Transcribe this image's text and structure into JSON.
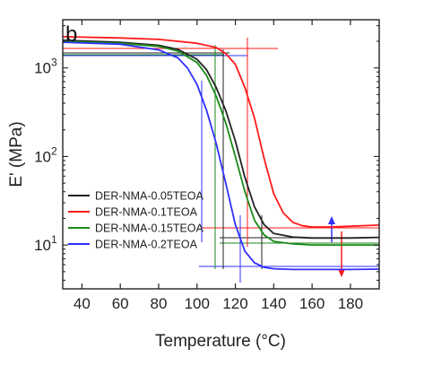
{
  "chart_data": {
    "type": "line",
    "panel_label": "b",
    "xlabel": "Temperature (°C)",
    "ylabel": "E' (MPa)",
    "xlim": [
      30,
      195
    ],
    "ylim": [
      3.2,
      3500
    ],
    "yscale": "log",
    "x_ticks": [
      40,
      60,
      80,
      100,
      120,
      140,
      160,
      180
    ],
    "y_ticks": [
      {
        "value": 10,
        "base": "10",
        "exp": "1"
      },
      {
        "value": 100,
        "base": "10",
        "exp": "2"
      },
      {
        "value": 1000,
        "base": "10",
        "exp": "3"
      }
    ],
    "legend_position": "bottom-left",
    "series": [
      {
        "name": "DER-NMA-0.05TEOA",
        "color": "#222222",
        "x": [
          30,
          60,
          80,
          90,
          100,
          105,
          110,
          115,
          120,
          125,
          130,
          135,
          140,
          150,
          160,
          170,
          180,
          195
        ],
        "y": [
          2050,
          1950,
          1800,
          1620,
          1250,
          950,
          600,
          330,
          150,
          58,
          27,
          17,
          13.5,
          12.3,
          12,
          12,
          12,
          12.2
        ]
      },
      {
        "name": "DER-NMA-0.1TEOA",
        "color": "#ff1a1a",
        "x": [
          30,
          60,
          80,
          100,
          110,
          115,
          120,
          125,
          130,
          135,
          140,
          145,
          150,
          155,
          160,
          170,
          180,
          195
        ],
        "y": [
          2250,
          2180,
          2100,
          1900,
          1700,
          1450,
          1100,
          600,
          270,
          95,
          38,
          23,
          18,
          16.5,
          16,
          16,
          16.3,
          16.8
        ]
      },
      {
        "name": "DER-NMA-0.15TEOA",
        "color": "#1a8a1a",
        "x": [
          30,
          60,
          80,
          90,
          100,
          105,
          110,
          115,
          120,
          125,
          130,
          135,
          140,
          150,
          160,
          170,
          180,
          195
        ],
        "y": [
          2000,
          1900,
          1750,
          1550,
          1150,
          820,
          480,
          240,
          100,
          40,
          19,
          13,
          11,
          10.3,
          10,
          10,
          10,
          10
        ]
      },
      {
        "name": "DER-NMA-0.2TEOA",
        "color": "#3030ff",
        "x": [
          30,
          60,
          80,
          90,
          95,
          100,
          105,
          110,
          115,
          120,
          125,
          130,
          135,
          140,
          150,
          160,
          180,
          195
        ],
        "y": [
          1950,
          1850,
          1600,
          1300,
          1000,
          650,
          330,
          140,
          50,
          17,
          8.5,
          6.3,
          5.6,
          5.4,
          5.3,
          5.3,
          5.3,
          5.35
        ]
      }
    ]
  }
}
